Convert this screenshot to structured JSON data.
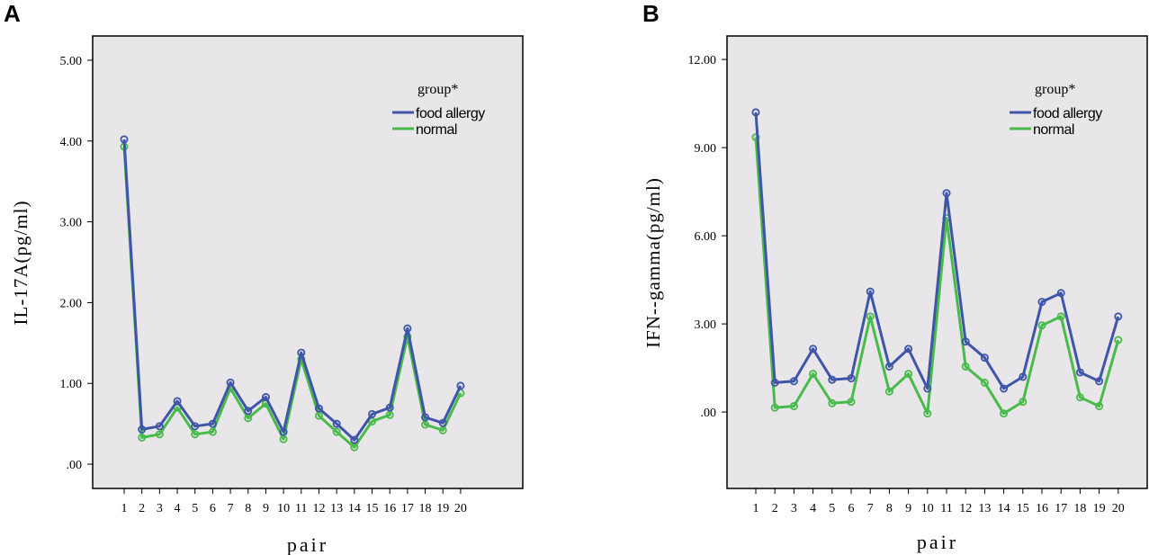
{
  "colors": {
    "food_allergy": "#3f55a7",
    "normal": "#48bb4a",
    "plot_background": "#e8e6e9"
  },
  "chart_data": [
    {
      "panel": "A",
      "type": "line",
      "xlabel": "pair",
      "ylabel": "IL-17A(pg/ml)",
      "legend_title": "group*",
      "legend_position": "top-right",
      "categories": [
        "1",
        "2",
        "3",
        "4",
        "5",
        "6",
        "7",
        "8",
        "9",
        "10",
        "11",
        "12",
        "13",
        "14",
        "15",
        "16",
        "17",
        "18",
        "19",
        "20"
      ],
      "ylim": [
        -0.3,
        5.3
      ],
      "yticks": [
        0,
        1,
        2,
        3,
        4,
        5
      ],
      "ytick_labels": [
        ".00",
        "1.00",
        "2.00",
        "3.00",
        "4.00",
        "5.00"
      ],
      "series": [
        {
          "name": "food allergy",
          "values": [
            4.02,
            0.43,
            0.47,
            0.78,
            0.47,
            0.5,
            1.01,
            0.66,
            0.83,
            0.4,
            1.38,
            0.69,
            0.5,
            0.3,
            0.62,
            0.7,
            1.68,
            0.58,
            0.51,
            0.97
          ]
        },
        {
          "name": "normal",
          "values": [
            3.93,
            0.33,
            0.37,
            0.7,
            0.37,
            0.4,
            0.94,
            0.57,
            0.75,
            0.31,
            1.3,
            0.6,
            0.4,
            0.21,
            0.53,
            0.61,
            1.58,
            0.49,
            0.42,
            0.88
          ]
        }
      ]
    },
    {
      "panel": "B",
      "type": "line",
      "xlabel": "pair",
      "ylabel": "IFN--gamma(pg/ml)",
      "legend_title": "group*",
      "legend_position": "top-right",
      "categories": [
        "1",
        "2",
        "3",
        "4",
        "5",
        "6",
        "7",
        "8",
        "9",
        "10",
        "11",
        "12",
        "13",
        "14",
        "15",
        "16",
        "17",
        "18",
        "19",
        "20"
      ],
      "ylim": [
        -2.6,
        12.8
      ],
      "yticks": [
        0,
        3,
        6,
        9,
        12
      ],
      "ytick_labels": [
        ".00",
        "3.00",
        "6.00",
        "9.00",
        "12.00"
      ],
      "series": [
        {
          "name": "food allergy",
          "values": [
            10.2,
            1.0,
            1.05,
            2.15,
            1.1,
            1.15,
            4.1,
            1.55,
            2.15,
            0.8,
            7.45,
            2.4,
            1.85,
            0.8,
            1.2,
            3.75,
            4.05,
            1.35,
            1.05,
            3.25
          ]
        },
        {
          "name": "normal",
          "values": [
            9.35,
            0.15,
            0.2,
            1.3,
            0.3,
            0.35,
            3.25,
            0.7,
            1.3,
            -0.05,
            6.6,
            1.55,
            1.0,
            -0.05,
            0.35,
            2.95,
            3.25,
            0.5,
            0.2,
            2.45
          ]
        }
      ]
    }
  ]
}
